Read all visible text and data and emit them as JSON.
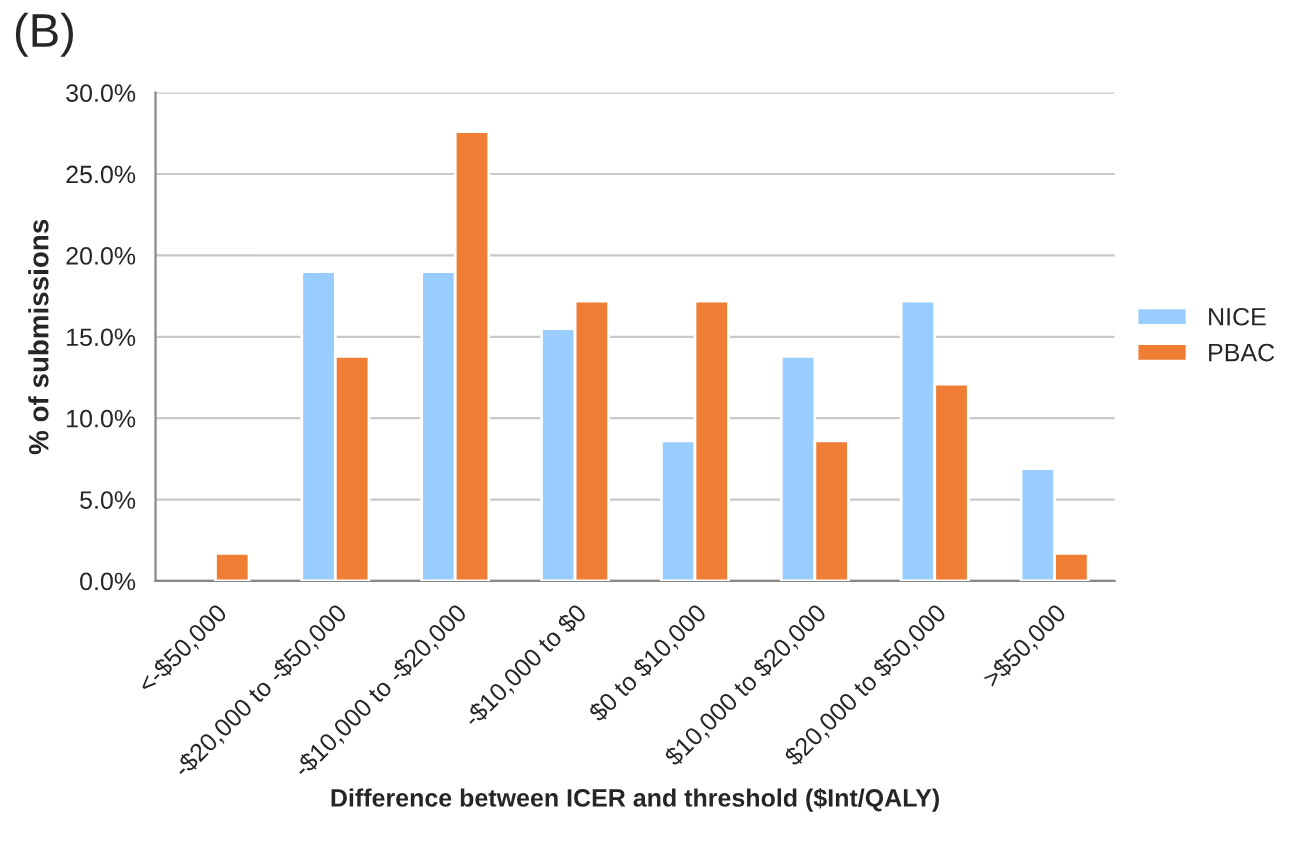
{
  "chart_data": {
    "type": "bar",
    "title": "(B)",
    "xlabel": "Difference between ICER and threshold ($Int/QALY)",
    "ylabel": "% of submissions",
    "categories": [
      "<-$50,000",
      "-$20,000 to -$50,000",
      "-$10,000 to -$20,000",
      "-$10,000 to $0",
      "$0 to $10,000",
      "$10,000 to $20,000",
      "$20,000 to $50,000",
      ">$50,000"
    ],
    "series": [
      {
        "name": "NICE",
        "color": "#99ccff",
        "values": [
          null,
          19.0,
          19.0,
          15.5,
          8.6,
          13.8,
          17.2,
          6.9
        ]
      },
      {
        "name": "PBAC",
        "color": "#ef7d33",
        "values": [
          1.7,
          13.8,
          27.6,
          17.2,
          17.2,
          8.6,
          12.1,
          1.7
        ]
      }
    ],
    "ylim": [
      0,
      30
    ],
    "yticks": [
      {
        "value": 0,
        "label": "0.0%"
      },
      {
        "value": 5,
        "label": "5.0%"
      },
      {
        "value": 10,
        "label": "10.0%"
      },
      {
        "value": 15,
        "label": "15.0%"
      },
      {
        "value": 20,
        "label": "20.0%"
      },
      {
        "value": 25,
        "label": "25.0%"
      },
      {
        "value": 30,
        "label": "30.0%"
      }
    ],
    "grid": "y",
    "legend": "right"
  }
}
